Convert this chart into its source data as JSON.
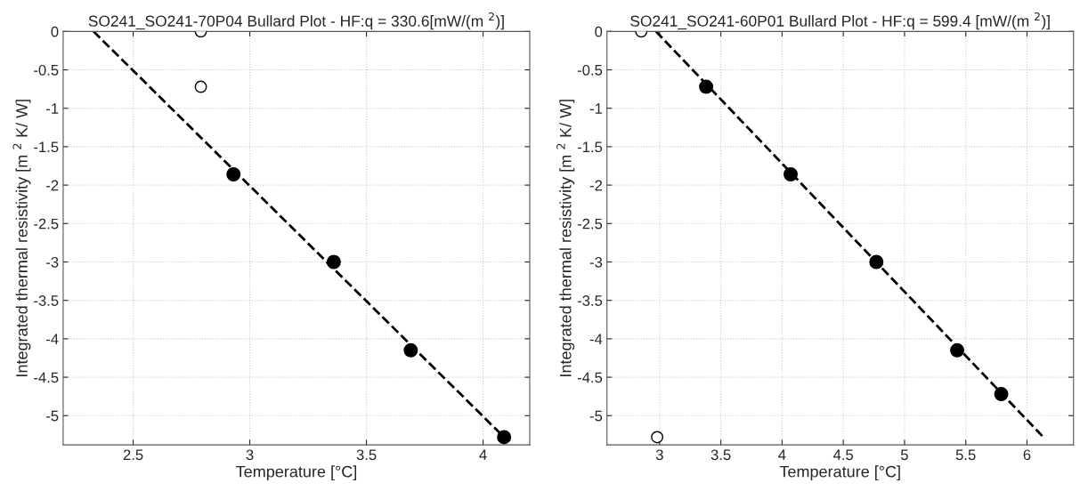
{
  "chart_data": [
    {
      "type": "scatter",
      "title": "SO241_SO241-70P04 Bullard Plot - HF:q = 330.6[mW/(m $^{2}$)]",
      "xlabel": "Temperature [°C]",
      "ylabel": "Integrated thermal resistivity [m $^{2}$ K/ W]",
      "series": [
        {
          "type": "line",
          "color": "#000000",
          "line_style": "dashed",
          "marker": "none",
          "x": [
            2.33,
            4.09
          ],
          "values": [
            0,
            -5.28
          ]
        },
        {
          "type": "scatter",
          "color": "#000000",
          "marker": "circle",
          "x": [
            2.93,
            3.36,
            3.69,
            4.09
          ],
          "values": [
            -1.86,
            -3.0,
            -4.15,
            -5.28
          ]
        },
        {
          "type": "scatter",
          "color": "#ffffff",
          "marker": "circle",
          "x": [
            2.79,
            2.79
          ],
          "values": [
            0,
            -0.72
          ]
        }
      ],
      "xlim": [
        2.2,
        4.2
      ],
      "xticks": [
        2.5,
        3,
        3.5,
        4
      ],
      "ylim": [
        -5.38,
        0
      ],
      "yticks": [
        0,
        -0.5,
        -1,
        -1.5,
        -2,
        -2.5,
        -3,
        -3.5,
        -4,
        -4.5,
        -5
      ],
      "grid": true
    },
    {
      "type": "scatter",
      "title": "SO241_SO241-60P01 Bullard Plot - HF:q = 599.4 [mW/(m $^{2}$)]",
      "xlabel": "Temperature [°C]",
      "ylabel": "Integrated thermal resistivity [m $^{2}$ K/ W]",
      "series": [
        {
          "type": "line",
          "color": "#000000",
          "line_style": "dashed",
          "marker": "none",
          "x": [
            2.97,
            6.14
          ],
          "values": [
            0,
            -5.29
          ]
        },
        {
          "type": "scatter",
          "color": "#000000",
          "marker": "circle",
          "x": [
            3.38,
            4.07,
            4.77,
            5.43,
            5.79
          ],
          "values": [
            -0.72,
            -1.86,
            -3.0,
            -4.15,
            -4.72
          ]
        },
        {
          "type": "scatter",
          "color": "#ffffff",
          "marker": "circle",
          "x": [
            2.85,
            2.98
          ],
          "values": [
            0,
            -5.28
          ]
        }
      ],
      "xlim": [
        2.57,
        6.38
      ],
      "xticks": [
        3,
        3.5,
        4,
        4.5,
        5,
        5.5,
        6
      ],
      "ylim": [
        -5.38,
        0
      ],
      "yticks": [
        0,
        -0.5,
        -1,
        -1.5,
        -2,
        -2.5,
        -3,
        -3.5,
        -4,
        -4.5,
        -5
      ],
      "grid": true
    }
  ]
}
